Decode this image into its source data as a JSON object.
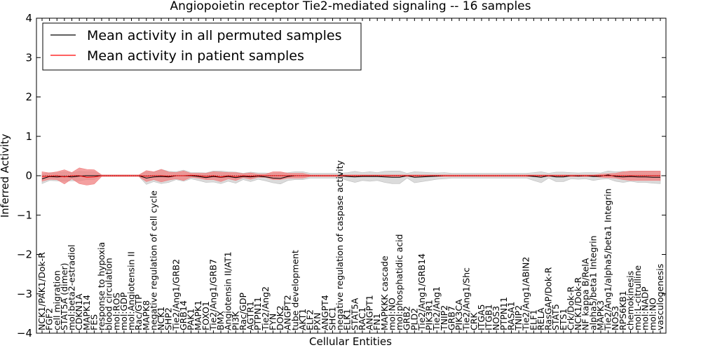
{
  "chart_data": {
    "type": "line",
    "title": "Angiopoietin receptor Tie2-mediated signaling -- 16 samples",
    "xlabel": "Cellular Entities",
    "ylabel": "Inferred Activity",
    "ylim": [
      -4,
      4
    ],
    "yticks": [
      "−4",
      "−3",
      "−2",
      "−1",
      "0",
      "1",
      "2",
      "3",
      "4"
    ],
    "legend": {
      "position": "top-left",
      "entries": [
        {
          "label": "Mean activity in all permuted samples",
          "color": "#000000"
        },
        {
          "label": "Mean activity in patient samples",
          "color": "#ff0000"
        }
      ]
    },
    "colors": {
      "patient_band": "#f08080",
      "permuted_band": "#bdbdbd",
      "patient_line": "#ff0000",
      "permuted_line": "#000000"
    },
    "categories": [
      "NCK1/PAK1/Dok-R",
      "FGF2",
      "cell migration",
      "STAT5A (dimer)",
      "mol:beta2-estradiol",
      "CDKN1A",
      "MAPK14",
      "FES",
      "response to hypoxia",
      "blood circulation",
      "mol:ROS",
      "mol:GDP",
      "mol:Angiotensin II",
      "Rac/GTP",
      "MAPK8",
      "negative regulation of cell cycle",
      "NCK1",
      "SHP2",
      "Tie2/Ang1/GRB2",
      "GRB14",
      "PAK1",
      "MAPK1",
      "FOXO1",
      "Tie2/Ang1/GRB7",
      "BMX",
      "Angiotensin II/AT1",
      "PI3K",
      "Rac/GDP",
      "AGTR1",
      "PTPN11",
      "Tie2/Ang2",
      "FYN",
      "DOK2",
      "ANGPT2",
      "tube development",
      "AKT1",
      "ELF2",
      "PXN",
      "ANGPT4",
      "SHC1",
      "negative regulation of caspase activity",
      "ELK1",
      "STAT5A",
      "RAC1",
      "ANGPT1",
      "FN1",
      "MAPKKK cascade",
      "mol:NO",
      "mol:phosphatidic acid",
      "GRB2",
      "PLD2",
      "Tie2/Ang1/GRB14",
      "PIK3R1",
      "Tie2/Ang1",
      "TNIP2",
      "GRB7",
      "PIK3CA",
      "Tie2/Ang1/Shc",
      "CRK",
      "ITGA5",
      "ITGB1",
      "NOS3",
      "PTPN11",
      "RASA1",
      "TNIP2",
      "Tie2/Ang1/ABIN2",
      "ELF1",
      "RELA",
      "RasGAP/Dok-R",
      "STAT5",
      "ETS1",
      "Crk/Dok-R",
      "NCK1/Dok-R",
      "NF kappa B/RelA",
      "alpha5/beta1 Integrin",
      "MAPK3",
      "Tie2/Ang1/alpha5/beta1 Integrin",
      "NOS3",
      "RPS6KB1",
      "chemokinesis",
      "mol:L-citrulline",
      "mol:NADP",
      "mol:NO",
      "vasculogenesis"
    ],
    "series": [
      {
        "name": "Mean activity in patient samples",
        "values": [
          -0.02,
          -0.01,
          0.0,
          -0.03,
          0.0,
          0.0,
          -0.04,
          -0.03,
          0.0,
          0.0,
          0.0,
          0.0,
          0.0,
          0.0,
          -0.01,
          0.0,
          0.0,
          -0.01,
          0.0,
          0.0,
          0.01,
          0.0,
          -0.02,
          0.0,
          -0.03,
          0.0,
          -0.02,
          0.0,
          -0.01,
          0.0,
          0.0,
          0.0,
          0.0,
          0.0,
          0.0,
          0.0,
          0.0,
          0.0,
          0.0,
          0.0,
          0.0,
          0.0,
          0.0,
          0.0,
          0.0,
          0.0,
          0.0,
          0.0,
          0.0,
          0.0,
          0.0,
          0.0,
          0.0,
          0.0,
          0.0,
          0.0,
          0.0,
          0.0,
          0.0,
          0.0,
          0.0,
          0.0,
          0.0,
          0.0,
          0.0,
          0.0,
          0.0,
          0.0,
          0.0,
          0.0,
          0.0,
          0.0,
          0.0,
          0.0,
          0.0,
          0.0,
          0.0,
          0.0,
          0.0,
          0.0,
          0.0,
          0.0,
          0.0,
          0.0
        ],
        "band": [
          0.12,
          0.08,
          0.1,
          0.18,
          0.08,
          0.2,
          0.2,
          0.18,
          0.02,
          0.02,
          0.02,
          0.02,
          0.02,
          0.02,
          0.14,
          0.1,
          0.16,
          0.1,
          0.08,
          0.12,
          0.05,
          0.06,
          0.08,
          0.1,
          0.12,
          0.08,
          0.1,
          0.05,
          0.08,
          0.04,
          0.04,
          0.1,
          0.1,
          0.06,
          0.06,
          0.06,
          0.02,
          0.02,
          0.02,
          0.02,
          0.02,
          0.02,
          0.02,
          0.02,
          0.02,
          0.02,
          0.02,
          0.02,
          0.02,
          0.02,
          0.02,
          0.02,
          0.02,
          0.02,
          0.02,
          0.02,
          0.02,
          0.02,
          0.02,
          0.02,
          0.02,
          0.02,
          0.02,
          0.02,
          0.02,
          0.02,
          0.02,
          0.02,
          0.02,
          0.02,
          0.02,
          0.02,
          0.02,
          0.02,
          0.02,
          0.04,
          0.05,
          0.06,
          0.1,
          0.12,
          0.12,
          0.12,
          0.12,
          0.12
        ]
      },
      {
        "name": "Mean activity in all permuted samples",
        "values": [
          -0.08,
          -0.02,
          -0.03,
          -0.02,
          -0.03,
          -0.01,
          0.0,
          0.0,
          0.0,
          0.0,
          0.0,
          0.0,
          0.0,
          0.0,
          -0.06,
          -0.03,
          -0.02,
          -0.03,
          0.0,
          0.0,
          0.0,
          -0.02,
          -0.05,
          -0.02,
          -0.04,
          -0.02,
          -0.05,
          -0.02,
          -0.03,
          -0.01,
          -0.03,
          -0.06,
          -0.07,
          -0.02,
          0.0,
          0.0,
          0.0,
          0.0,
          0.0,
          0.0,
          0.0,
          -0.02,
          -0.03,
          -0.02,
          -0.02,
          -0.02,
          -0.03,
          -0.04,
          -0.04,
          0.0,
          -0.04,
          -0.03,
          -0.02,
          -0.01,
          0.0,
          0.0,
          0.0,
          0.0,
          0.0,
          0.0,
          0.0,
          0.0,
          0.0,
          0.0,
          0.0,
          0.0,
          -0.02,
          -0.04,
          0.0,
          -0.03,
          -0.03,
          0.0,
          -0.01,
          0.0,
          -0.02,
          -0.01,
          0.02,
          -0.02,
          -0.03,
          -0.02,
          -0.03,
          -0.03,
          -0.04,
          -0.04
        ],
        "band": [
          0.12,
          0.1,
          0.1,
          0.12,
          0.1,
          0.12,
          0.1,
          0.1,
          0.02,
          0.02,
          0.02,
          0.02,
          0.02,
          0.02,
          0.16,
          0.12,
          0.18,
          0.14,
          0.1,
          0.14,
          0.08,
          0.1,
          0.12,
          0.14,
          0.16,
          0.12,
          0.14,
          0.08,
          0.12,
          0.08,
          0.1,
          0.12,
          0.14,
          0.1,
          0.1,
          0.1,
          0.06,
          0.06,
          0.06,
          0.06,
          0.06,
          0.1,
          0.14,
          0.1,
          0.12,
          0.1,
          0.14,
          0.16,
          0.16,
          0.06,
          0.14,
          0.12,
          0.1,
          0.08,
          0.08,
          0.06,
          0.06,
          0.06,
          0.06,
          0.06,
          0.06,
          0.06,
          0.06,
          0.06,
          0.06,
          0.06,
          0.1,
          0.14,
          0.06,
          0.12,
          0.12,
          0.08,
          0.08,
          0.08,
          0.1,
          0.08,
          0.1,
          0.12,
          0.14,
          0.12,
          0.14,
          0.14,
          0.15,
          0.16
        ]
      }
    ]
  }
}
